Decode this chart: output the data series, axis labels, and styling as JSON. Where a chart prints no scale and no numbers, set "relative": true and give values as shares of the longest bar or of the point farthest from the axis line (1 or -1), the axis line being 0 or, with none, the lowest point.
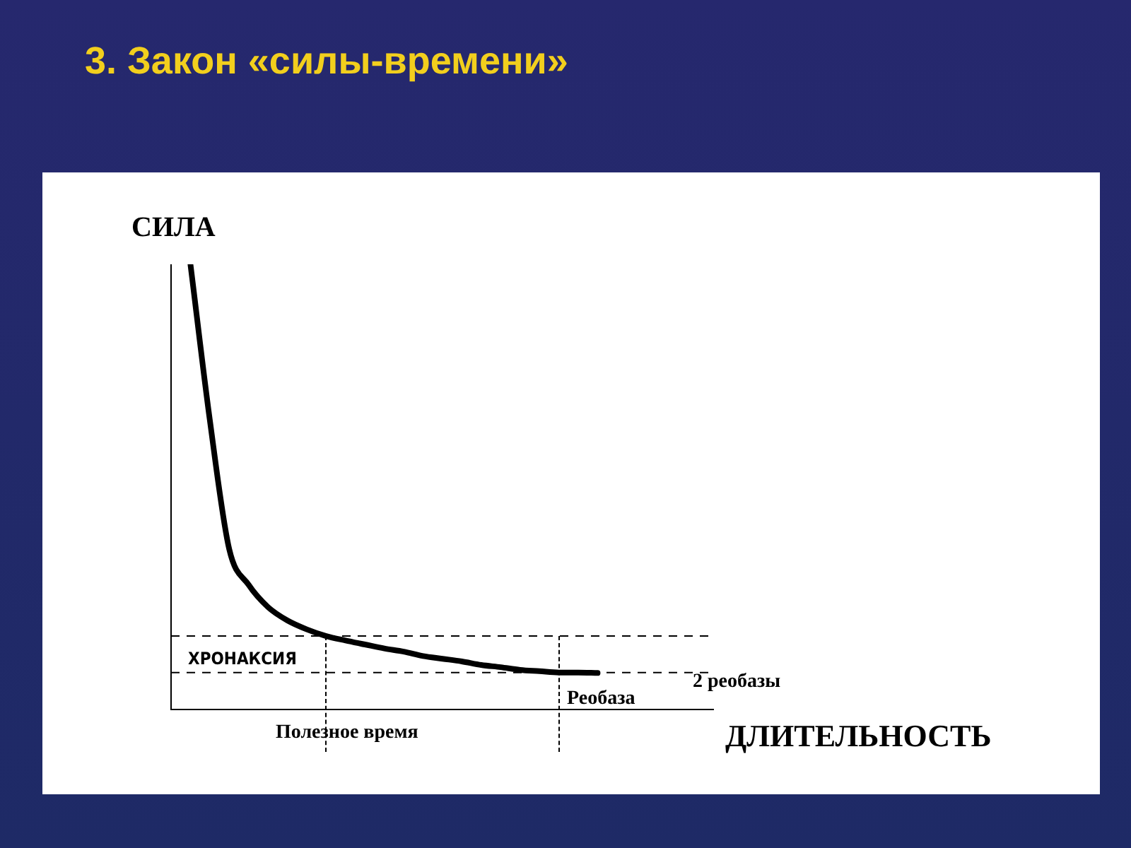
{
  "chart_data": {
    "type": "line",
    "title": "3. Закон «силы-времени»",
    "xlabel": "ДЛИТЕЛЬНОСТЬ",
    "ylabel": "СИЛА",
    "relative": true,
    "legend": false,
    "marker": "none",
    "line_style": "solid",
    "categories": [
      null,
      null,
      null,
      null,
      null,
      null,
      null,
      null,
      null,
      null,
      null,
      null,
      null,
      null,
      null,
      null,
      null,
      null,
      null,
      null,
      null,
      null,
      null,
      null,
      null,
      null,
      null,
      null,
      null
    ],
    "series": [
      {
        "color": "#000000",
        "values": [
          null,
          1.0,
          0.65,
          0.36,
          0.28,
          0.23,
          0.2,
          0.18,
          0.165,
          0.155,
          0.146,
          0.137,
          0.13,
          0.12,
          0.114,
          0.108,
          0.1,
          0.095,
          0.089,
          0.086,
          0.083,
          0.083,
          0.082,
          null,
          null,
          null,
          null,
          null,
          null
        ]
      }
    ],
    "ref_lines": [
      {
        "axis": "y",
        "value": 0.165,
        "color": "#000000",
        "line_style": "dashed"
      },
      {
        "axis": "y",
        "value": 0.083,
        "color": "#000000",
        "line_style": "dashed"
      }
    ],
    "annotations": [
      "ХРОНАКСИЯ",
      "2 реобазы",
      "Реобаза",
      "Полезное время"
    ]
  }
}
